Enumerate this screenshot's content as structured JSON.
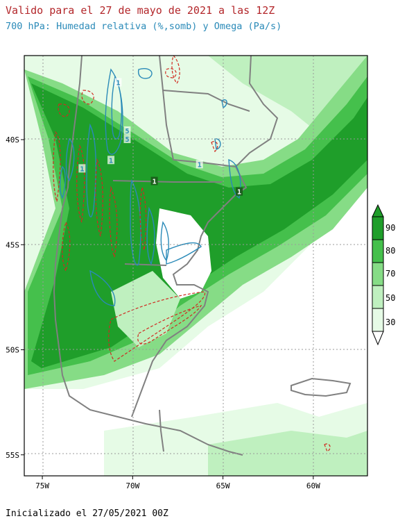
{
  "title": "Valido para el 27 de mayo de 2021 a las 12Z",
  "subtitle": "700 hPa: Humedad relativa (%,somb) y Omega (Pa/s)",
  "footer": "Inicializado el 27/05/2021 00Z",
  "axes": {
    "lon_ticks": [
      {
        "value": -75,
        "label": "75W"
      },
      {
        "value": -70,
        "label": "70W"
      },
      {
        "value": -65,
        "label": "65W"
      },
      {
        "value": -60,
        "label": "60W"
      }
    ],
    "lat_ticks": [
      {
        "value": -40,
        "label": "40S"
      },
      {
        "value": -45,
        "label": "45S"
      },
      {
        "value": -50,
        "label": "50S"
      },
      {
        "value": -55,
        "label": "55S"
      }
    ],
    "lon_range": [
      -76,
      -57
    ],
    "lat_range": [
      -56,
      -36
    ]
  },
  "colorbar": {
    "labels": [
      "90",
      "80",
      "70",
      "50",
      "30"
    ],
    "colors": [
      "#1f9e2a",
      "#45c04c",
      "#86dc86",
      "#bff0bf",
      "#e6fbe6"
    ]
  },
  "omega_labels": [
    {
      "text": "1",
      "lon": -70.8,
      "lat": -37.3
    },
    {
      "text": "5",
      "lon": -70.3,
      "lat": -39.6
    },
    {
      "text": "5",
      "lon": -70.3,
      "lat": -40.0
    },
    {
      "text": "1",
      "lon": -71.2,
      "lat": -41.0
    },
    {
      "text": "1",
      "lon": -72.8,
      "lat": -41.4
    },
    {
      "text": "1",
      "lon": -68.8,
      "lat": -42.0
    },
    {
      "text": "1",
      "lon": -64.1,
      "lat": -42.5
    },
    {
      "text": "1",
      "lon": -66.3,
      "lat": -41.2
    }
  ],
  "colors": {
    "land_border": "#808080",
    "omega_positive": "#2a8ab8",
    "omega_negative": "#d02a20",
    "grid": "#9a9a9a"
  }
}
